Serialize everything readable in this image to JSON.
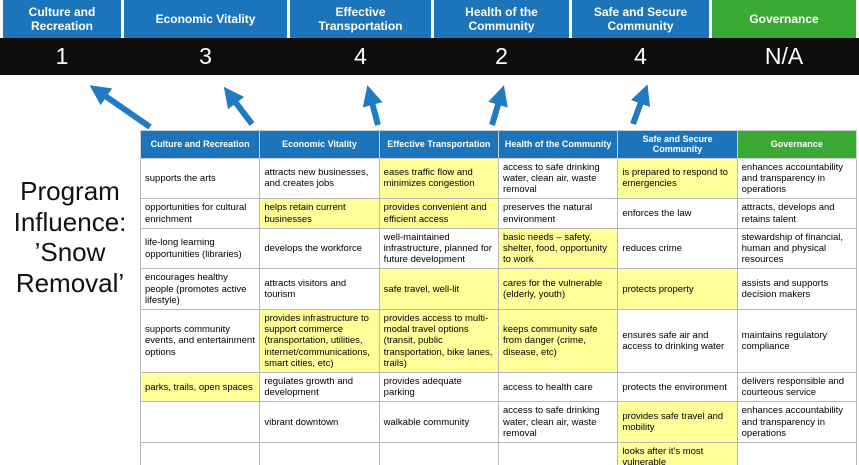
{
  "program": {
    "title": "Program Influence: ’Snow Removal’"
  },
  "colors": {
    "pillar_blue": "#1C75BB",
    "pillar_green": "#3AAA35",
    "score_band": "#0D0D0D",
    "highlight_yellow": "#FFFF99",
    "arrow_blue": "#1F7BC2"
  },
  "scoreboard": {
    "columns": [
      {
        "label": "Culture and Recreation",
        "score": "1",
        "header_color": "#1C75BB"
      },
      {
        "label": "Economic Vitality",
        "score": "3",
        "header_color": "#1C75BB"
      },
      {
        "label": "Effective Transportation",
        "score": "4",
        "header_color": "#1C75BB"
      },
      {
        "label": "Health of the Community",
        "score": "2",
        "header_color": "#1C75BB"
      },
      {
        "label": "Safe and Secure Community",
        "score": "4",
        "header_color": "#1C75BB"
      },
      {
        "label": "Governance",
        "score": "N/A",
        "header_color": "#3AAA35"
      }
    ]
  },
  "matrix": {
    "headers": [
      {
        "label": "Culture and Recreation",
        "color": "#1C75BB"
      },
      {
        "label": "Economic Vitality",
        "color": "#1C75BB"
      },
      {
        "label": "Effective Transportation",
        "color": "#1C75BB"
      },
      {
        "label": "Health of the Community",
        "color": "#1C75BB"
      },
      {
        "label": "Safe and Secure Community",
        "color": "#1C75BB"
      },
      {
        "label": "Governance",
        "color": "#3AAA35"
      }
    ],
    "rows": [
      [
        {
          "text": "supports the arts",
          "highlight": false
        },
        {
          "text": "attracts new businesses, and creates jobs",
          "highlight": false
        },
        {
          "text": "eases traffic flow and minimizes congestion",
          "highlight": true
        },
        {
          "text": "access to safe drinking water, clean air, waste removal",
          "highlight": false
        },
        {
          "text": "is prepared to respond to emergencies",
          "highlight": true
        },
        {
          "text": "enhances accountability and transparency in operations",
          "highlight": false
        }
      ],
      [
        {
          "text": "opportunities for cultural enrichment",
          "highlight": false
        },
        {
          "text": "helps retain current businesses",
          "highlight": true
        },
        {
          "text": "provides convenient and efficient access",
          "highlight": true
        },
        {
          "text": "preserves the natural environment",
          "highlight": false
        },
        {
          "text": "enforces the law",
          "highlight": false
        },
        {
          "text": "attracts, develops and retains talent",
          "highlight": false
        }
      ],
      [
        {
          "text": "life-long learning opportunities (libraries)",
          "highlight": false
        },
        {
          "text": "develops the workforce",
          "highlight": false
        },
        {
          "text": "well-maintained infrastructure, planned for future development",
          "highlight": false
        },
        {
          "text": "basic needs – safety, shelter, food, opportunity to work",
          "highlight": true
        },
        {
          "text": "reduces crime",
          "highlight": false
        },
        {
          "text": "stewardship of financial, human and physical resources",
          "highlight": false
        }
      ],
      [
        {
          "text": "encourages healthy people (promotes active lifestyle)",
          "highlight": false
        },
        {
          "text": "attracts visitors and tourism",
          "highlight": false
        },
        {
          "text": "safe travel, well-lit",
          "highlight": true
        },
        {
          "text": "cares for the vulnerable (elderly, youth)",
          "highlight": true
        },
        {
          "text": "protects property",
          "highlight": true
        },
        {
          "text": "assists and supports decision makers",
          "highlight": false
        }
      ],
      [
        {
          "text": "supports community events, and entertainment options",
          "highlight": false
        },
        {
          "text": "provides infrastructure to support commerce (transportation, utilities, internet/communications, smart cities, etc)",
          "highlight": true
        },
        {
          "text": "provides access to multi-modal travel options (transit, public transportation, bike lanes, trails)",
          "highlight": true
        },
        {
          "text": "keeps community safe from danger (crime, disease, etc)",
          "highlight": true
        },
        {
          "text": "ensures safe air and access to drinking water",
          "highlight": false
        },
        {
          "text": "maintains regulatory compliance",
          "highlight": false
        }
      ],
      [
        {
          "text": "parks, trails, open spaces",
          "highlight": true
        },
        {
          "text": "regulates growth and development",
          "highlight": false
        },
        {
          "text": "provides adequate parking",
          "highlight": false
        },
        {
          "text": "access to health care",
          "highlight": false
        },
        {
          "text": "protects the environment",
          "highlight": false
        },
        {
          "text": "delivers responsible and courteous service",
          "highlight": false
        }
      ],
      [
        {
          "text": "",
          "highlight": false
        },
        {
          "text": "vibrant downtown",
          "highlight": false
        },
        {
          "text": "walkable community",
          "highlight": false
        },
        {
          "text": "access to safe drinking water, clean air, waste removal",
          "highlight": false
        },
        {
          "text": "provides safe travel and mobility",
          "highlight": true
        },
        {
          "text": "enhances accountability and transparency in operations",
          "highlight": false
        }
      ],
      [
        {
          "text": "",
          "highlight": false
        },
        {
          "text": "",
          "highlight": false
        },
        {
          "text": "",
          "highlight": false
        },
        {
          "text": "",
          "highlight": false
        },
        {
          "text": "looks after it's most vulnerable",
          "highlight": true
        },
        {
          "text": "",
          "highlight": false
        }
      ]
    ]
  }
}
